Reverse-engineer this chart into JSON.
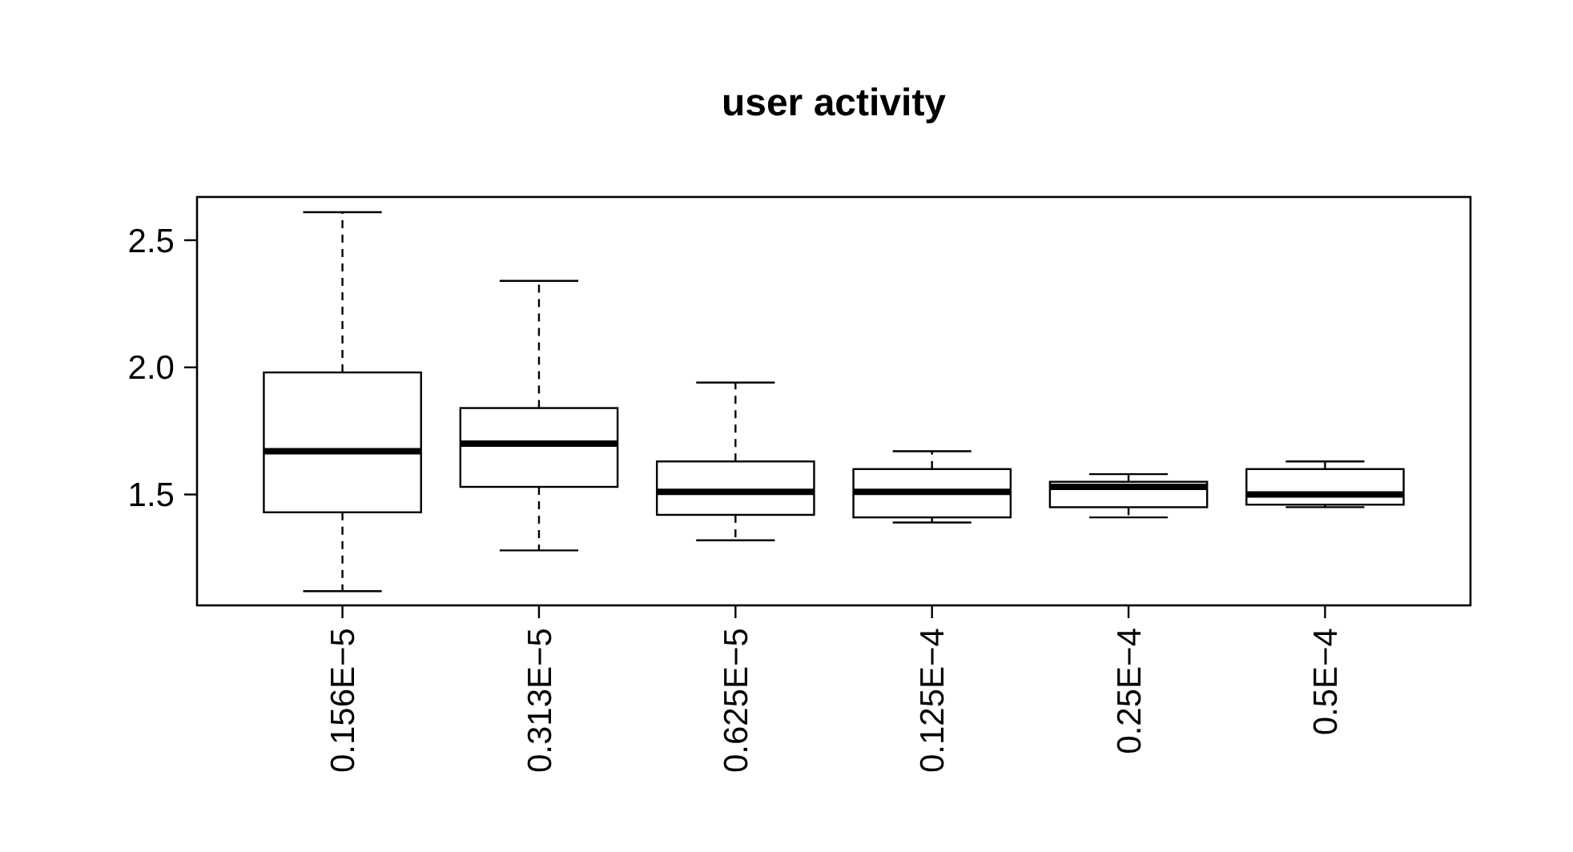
{
  "chart_data": {
    "type": "box",
    "title": "user activity",
    "categories": [
      "0.156E−5",
      "0.313E−5",
      "0.625E−5",
      "0.125E−4",
      "0.25E−4",
      "0.5E−4"
    ],
    "boxes": [
      {
        "low": 1.12,
        "q1": 1.43,
        "median": 1.67,
        "q3": 1.98,
        "high": 2.61
      },
      {
        "low": 1.28,
        "q1": 1.53,
        "median": 1.7,
        "q3": 1.84,
        "high": 2.34
      },
      {
        "low": 1.32,
        "q1": 1.42,
        "median": 1.51,
        "q3": 1.63,
        "high": 1.94
      },
      {
        "low": 1.39,
        "q1": 1.41,
        "median": 1.51,
        "q3": 1.6,
        "high": 1.67
      },
      {
        "low": 1.41,
        "q1": 1.45,
        "median": 1.53,
        "q3": 1.55,
        "high": 1.58
      },
      {
        "low": 1.45,
        "q1": 1.46,
        "median": 1.5,
        "q3": 1.6,
        "high": 1.63
      }
    ],
    "ylim": [
      1.064,
      2.67
    ],
    "yticks": [
      {
        "value": 1.5,
        "label": "1.5"
      },
      {
        "value": 2,
        "label": "2.0"
      },
      {
        "value": 2.5,
        "label": "2.5"
      }
    ],
    "grid": false
  }
}
